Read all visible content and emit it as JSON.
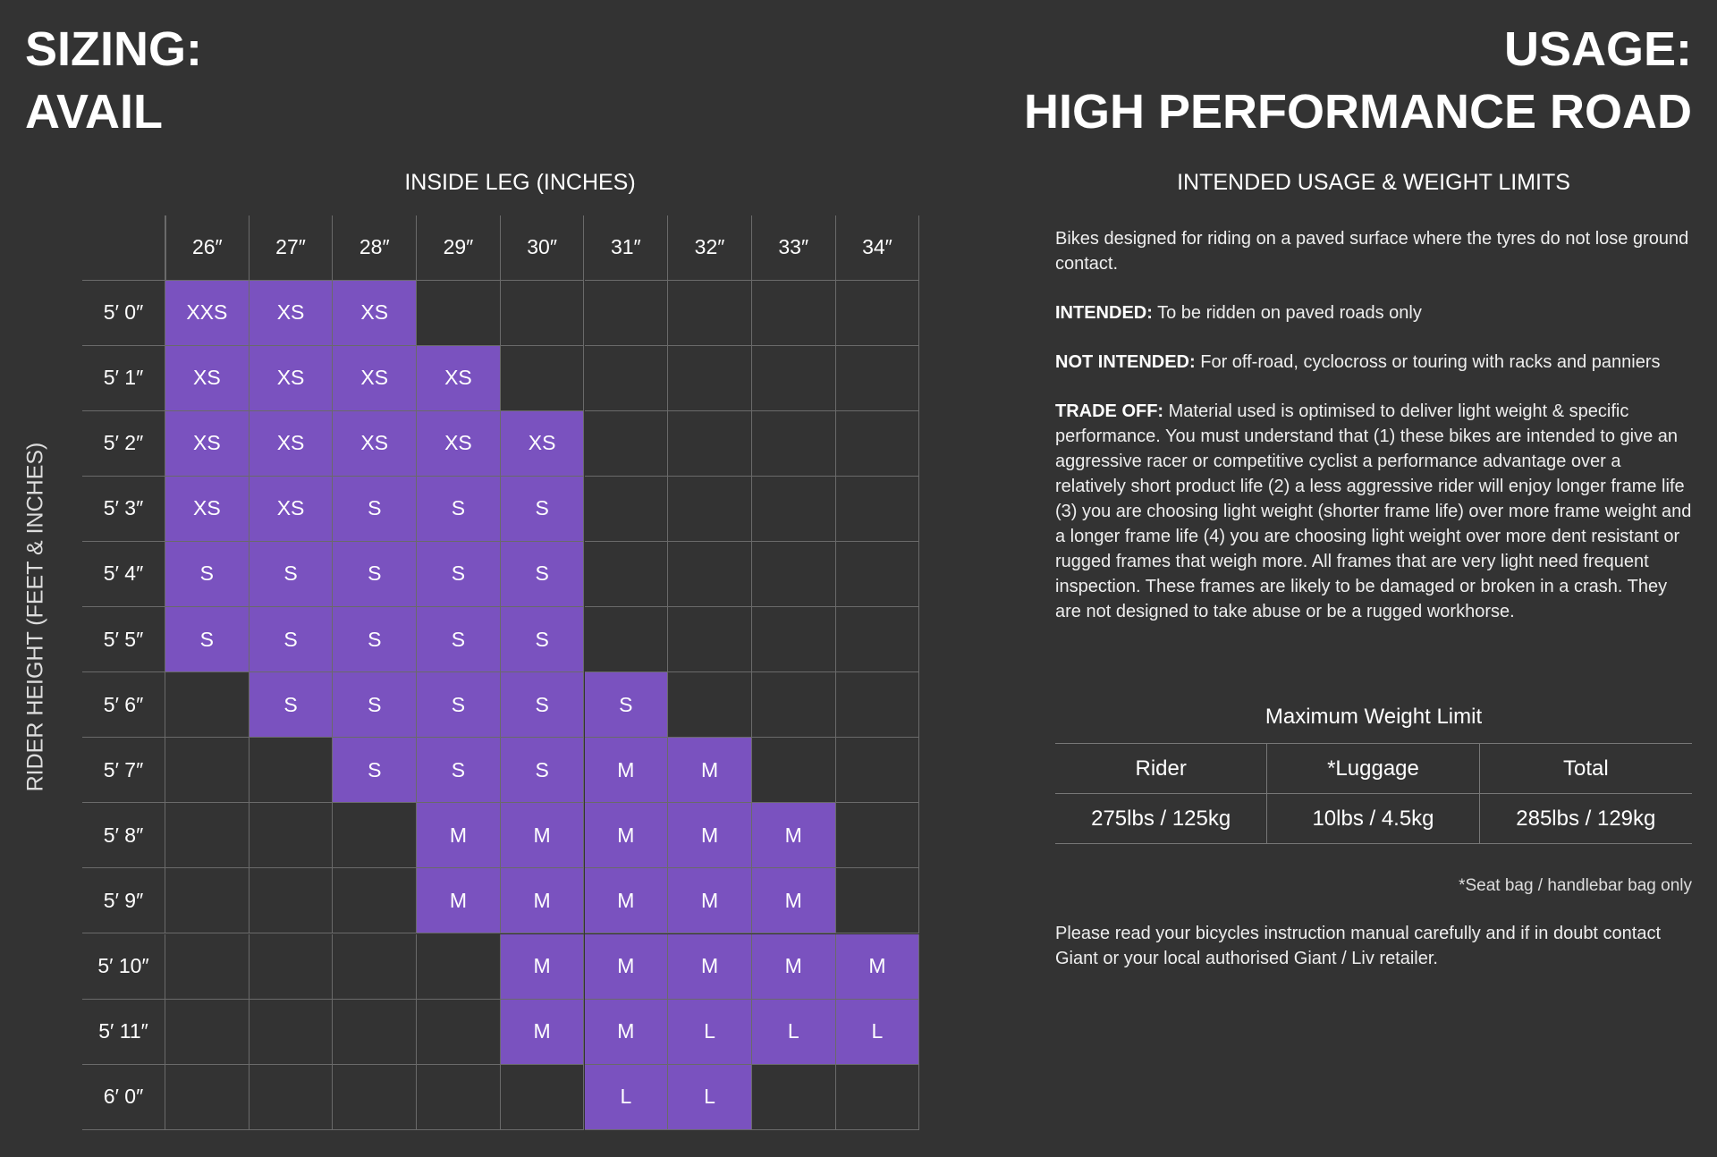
{
  "header": {
    "sizing_label": "SIZING:",
    "sizing_name": "AVAIL",
    "usage_label": "USAGE:",
    "usage_name": "HIGH PERFORMANCE ROAD"
  },
  "grid": {
    "x_title": "INSIDE LEG (INCHES)",
    "y_title": "RIDER HEIGHT (FEET & INCHES)",
    "columns": [
      "26″",
      "27″",
      "28″",
      "29″",
      "30″",
      "31″",
      "32″",
      "33″",
      "34″"
    ],
    "rows": [
      {
        "label": "5′ 0″",
        "cells": [
          "XXS",
          "XS",
          "XS",
          null,
          null,
          null,
          null,
          null,
          null
        ]
      },
      {
        "label": "5′ 1″",
        "cells": [
          "XS",
          "XS",
          "XS",
          "XS",
          null,
          null,
          null,
          null,
          null
        ]
      },
      {
        "label": "5′ 2″",
        "cells": [
          "XS",
          "XS",
          "XS",
          "XS",
          "XS",
          null,
          null,
          null,
          null
        ]
      },
      {
        "label": "5′ 3″",
        "cells": [
          "XS",
          "XS",
          "S",
          "S",
          "S",
          null,
          null,
          null,
          null
        ]
      },
      {
        "label": "5′ 4″",
        "cells": [
          "S",
          "S",
          "S",
          "S",
          "S",
          null,
          null,
          null,
          null
        ]
      },
      {
        "label": "5′ 5″",
        "cells": [
          "S",
          "S",
          "S",
          "S",
          "S",
          null,
          null,
          null,
          null
        ]
      },
      {
        "label": "5′ 6″",
        "cells": [
          null,
          "S",
          "S",
          "S",
          "S",
          "S",
          null,
          null,
          null
        ]
      },
      {
        "label": "5′ 7″",
        "cells": [
          null,
          null,
          "S",
          "S",
          "S",
          "M",
          "M",
          null,
          null
        ]
      },
      {
        "label": "5′ 8″",
        "cells": [
          null,
          null,
          null,
          "M",
          "M",
          "M",
          "M",
          "M",
          null
        ]
      },
      {
        "label": "5′ 9″",
        "cells": [
          null,
          null,
          null,
          "M",
          "M",
          "M",
          "M",
          "M",
          null
        ]
      },
      {
        "label": "5′ 10″",
        "cells": [
          null,
          null,
          null,
          null,
          "M",
          "M",
          "M",
          "M",
          "M"
        ]
      },
      {
        "label": "5′ 11″",
        "cells": [
          null,
          null,
          null,
          null,
          "M",
          "M",
          "L",
          "L",
          "L"
        ]
      },
      {
        "label": "6′ 0″",
        "cells": [
          null,
          null,
          null,
          null,
          null,
          "L",
          "L",
          null,
          null
        ]
      }
    ]
  },
  "usage": {
    "title": "INTENDED USAGE & WEIGHT LIMITS",
    "paragraphs": [
      {
        "text": "Bikes designed for  riding on a paved surface where the tyres do not lose ground contact."
      },
      {
        "lead": "INTENDED:",
        "text": " To be ridden on paved roads only"
      },
      {
        "lead": "NOT INTENDED:",
        "text": " For off-road, cyclocross or touring with racks and panniers"
      },
      {
        "lead": "TRADE OFF:",
        "text": " Material used is optimised to deliver light weight & specific performance. You must understand that (1) these bikes are intended to give an aggressive racer or competitive cyclist a performance advantage over a relatively short product life (2) a less aggressive rider will enjoy longer frame life (3) you are choosing light weight (shorter frame life) over more frame weight and a longer frame life (4) you are choosing light weight over more dent resistant or rugged frames that weigh more. All frames that are very light need frequent inspection. These frames are likely to be damaged or broken in a crash. They are not designed to take abuse or be a rugged workhorse."
      }
    ],
    "weight_title": "Maximum Weight Limit",
    "weight_headers": [
      "Rider",
      "*Luggage",
      "Total"
    ],
    "weight_values": [
      "275lbs / 125kg",
      "10lbs / 4.5kg",
      "285lbs / 129kg"
    ],
    "footnote": "*Seat bag / handlebar bag only",
    "closing": "Please read your bicycles instruction manual carefully and if in doubt contact Giant or your local authorised Giant / Liv retailer."
  }
}
